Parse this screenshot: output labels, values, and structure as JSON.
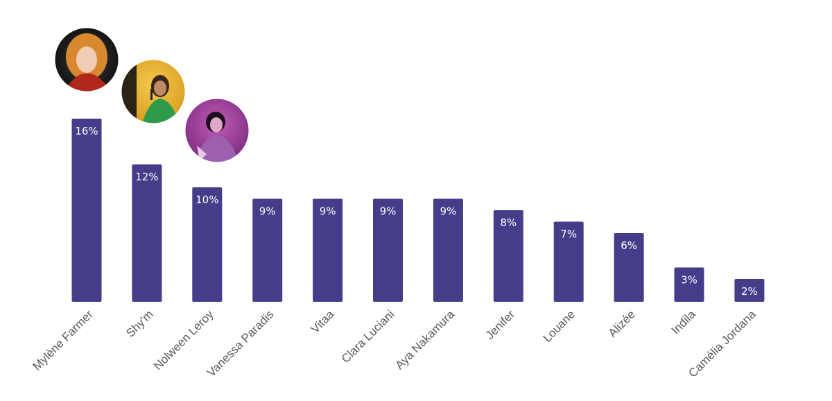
{
  "chart_data": {
    "type": "bar",
    "title": "",
    "xlabel": "",
    "ylabel": "",
    "ylim": [
      0,
      16
    ],
    "grid": false,
    "bar_color": "#453c8a",
    "bar_highlight_color": "#4a4192",
    "label_color": "#595959",
    "categories": [
      "Mylène Farmer",
      "Shy'm",
      "Nolween Leroy",
      "Vanessa Paradis",
      "Vitaa",
      "Clara Luciani",
      "Aya Nakamura",
      "Jenifer",
      "Louane",
      "Alizée",
      "Indila",
      "Camélia Jordana"
    ],
    "values": [
      16,
      12,
      10,
      9,
      9,
      9,
      9,
      8,
      7,
      6,
      3,
      2
    ],
    "data_labels": [
      "16%",
      "12%",
      "10%",
      "9%",
      "9%",
      "9%",
      "9%",
      "8%",
      "7%",
      "6%",
      "3%",
      "2%"
    ],
    "photos": [
      {
        "category": "Mylène Farmer",
        "icon": "portrait-photo-red-hair"
      },
      {
        "category": "Shy'm",
        "icon": "portrait-photo-green-dress"
      },
      {
        "category": "Nolween Leroy",
        "icon": "portrait-photo-pink-stage"
      }
    ]
  }
}
